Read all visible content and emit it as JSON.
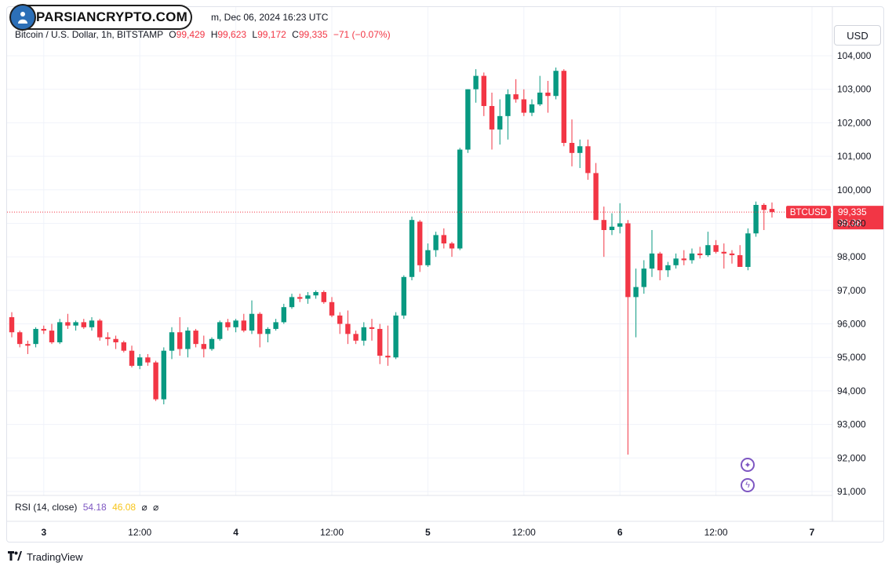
{
  "header": {
    "source_line_visible": "m, Dec 06, 2024 16:23 UTC",
    "symbol_line": "Bitcoin / U.S. Dollar, 1h, BITSTAMP",
    "ohlc": {
      "o_label": "O",
      "o_value": "99,429",
      "h_label": "H",
      "h_value": "99,623",
      "l_label": "L",
      "l_value": "99,172",
      "c_label": "C",
      "c_value": "99,335",
      "change": "−71 (−0.07%)"
    }
  },
  "logo": {
    "text": "PARSIANCRYPTO.COM",
    "icon": "parsiancrypto-logo-icon"
  },
  "currency_button": {
    "label": "USD"
  },
  "price_tag": {
    "symbol": "BTCUSD",
    "price": "99,335",
    "countdown": "36:38"
  },
  "rsi": {
    "label": "RSI (14, close)",
    "value1": "54.18",
    "value2": "46.08",
    "glyph1": "⌀",
    "glyph2": "⌀"
  },
  "branding": {
    "label": "TradingView",
    "icon": "tradingview-logo-icon"
  },
  "floating_buttons": [
    {
      "icon": "sparkle-icon"
    },
    {
      "icon": "lightning-icon"
    }
  ],
  "colors": {
    "up": "#089981",
    "down": "#f23645",
    "rsi_value1": "#7e57c2",
    "rsi_value2": "#f7c51b",
    "price_line": "#f23645",
    "grid": "#f0f3fa"
  },
  "chart_data": {
    "type": "candlestick",
    "symbol": "BTCUSD",
    "interval": "1h",
    "ylim": [
      91000,
      104300
    ],
    "y_ticks": [
      "91,000",
      "92,000",
      "93,000",
      "94,000",
      "95,000",
      "96,000",
      "97,000",
      "98,000",
      "99,000",
      "100,000",
      "101,000",
      "102,000",
      "103,000",
      "104,000"
    ],
    "y_tick_values": [
      91000,
      92000,
      93000,
      94000,
      95000,
      96000,
      97000,
      98000,
      99000,
      100000,
      101000,
      102000,
      103000,
      104000
    ],
    "x_ticks": [
      {
        "label": "3",
        "index": 4
      },
      {
        "label": "12:00",
        "index": 16
      },
      {
        "label": "4",
        "index": 28
      },
      {
        "label": "12:00",
        "index": 40
      },
      {
        "label": "5",
        "index": 52
      },
      {
        "label": "12:00",
        "index": 64
      },
      {
        "label": "6",
        "index": 76
      },
      {
        "label": "12:00",
        "index": 88
      },
      {
        "label": "7",
        "index": 100
      }
    ],
    "last_price": 99335,
    "grid": true,
    "candles": [
      [
        96200,
        96350,
        95600,
        95750
      ],
      [
        95750,
        95800,
        95300,
        95400
      ],
      [
        95400,
        95500,
        95100,
        95350
      ],
      [
        95400,
        95900,
        95300,
        95850
      ],
      [
        95850,
        95950,
        95700,
        95800
      ],
      [
        95800,
        96000,
        95400,
        95450
      ],
      [
        95450,
        96150,
        95400,
        96050
      ],
      [
        96050,
        96300,
        95850,
        95950
      ],
      [
        95950,
        96100,
        95800,
        96050
      ],
      [
        96050,
        96150,
        95850,
        95900
      ],
      [
        95900,
        96200,
        95800,
        96100
      ],
      [
        96100,
        96150,
        95500,
        95600
      ],
      [
        95600,
        95750,
        95350,
        95550
      ],
      [
        95550,
        95650,
        95250,
        95450
      ],
      [
        95450,
        95500,
        95150,
        95200
      ],
      [
        95200,
        95350,
        94700,
        94750
      ],
      [
        94750,
        95100,
        94650,
        95000
      ],
      [
        95000,
        95100,
        94750,
        94850
      ],
      [
        94850,
        94900,
        93700,
        93750
      ],
      [
        93750,
        95300,
        93600,
        95200
      ],
      [
        95200,
        95900,
        94950,
        95750
      ],
      [
        95750,
        96200,
        95050,
        95250
      ],
      [
        95250,
        95900,
        95000,
        95800
      ],
      [
        95800,
        95850,
        95300,
        95400
      ],
      [
        95400,
        95650,
        95000,
        95250
      ],
      [
        95250,
        95600,
        95200,
        95550
      ],
      [
        95550,
        96100,
        95500,
        96050
      ],
      [
        96050,
        96150,
        95800,
        95900
      ],
      [
        95900,
        96150,
        95750,
        96100
      ],
      [
        96100,
        96300,
        95750,
        95800
      ],
      [
        95800,
        96700,
        95700,
        96300
      ],
      [
        96300,
        96350,
        95300,
        95700
      ],
      [
        95700,
        95900,
        95450,
        95850
      ],
      [
        95850,
        96150,
        95800,
        96050
      ],
      [
        96050,
        96600,
        96000,
        96500
      ],
      [
        96500,
        96900,
        96450,
        96800
      ],
      [
        96800,
        96900,
        96650,
        96750
      ],
      [
        96750,
        96950,
        96600,
        96850
      ],
      [
        96850,
        97000,
        96750,
        96950
      ],
      [
        96950,
        97000,
        96600,
        96650
      ],
      [
        96650,
        96800,
        96200,
        96250
      ],
      [
        96250,
        96350,
        95700,
        96000
      ],
      [
        96000,
        96400,
        95400,
        95700
      ],
      [
        95700,
        95800,
        95400,
        95500
      ],
      [
        95500,
        96050,
        95350,
        95900
      ],
      [
        95900,
        96150,
        95500,
        95850
      ],
      [
        95850,
        96000,
        94800,
        95050
      ],
      [
        95050,
        95950,
        94750,
        95000
      ],
      [
        95000,
        96350,
        94950,
        96250
      ],
      [
        96250,
        97450,
        96150,
        97400
      ],
      [
        97400,
        99200,
        97300,
        99100
      ],
      [
        99050,
        99100,
        97550,
        97750
      ],
      [
        97750,
        98400,
        97700,
        98200
      ],
      [
        98200,
        98750,
        98000,
        98650
      ],
      [
        98650,
        98850,
        98250,
        98400
      ],
      [
        98400,
        98450,
        98000,
        98250
      ],
      [
        98250,
        101250,
        98200,
        101200
      ],
      [
        101200,
        103000,
        101100,
        103000
      ],
      [
        103000,
        103600,
        102600,
        103400
      ],
      [
        103400,
        103500,
        102200,
        102500
      ],
      [
        102500,
        102900,
        101200,
        101800
      ],
      [
        101800,
        102700,
        101350,
        102200
      ],
      [
        102200,
        103000,
        101500,
        102850
      ],
      [
        102850,
        103300,
        102600,
        102700
      ],
      [
        102700,
        103000,
        102200,
        102300
      ],
      [
        102300,
        102700,
        102200,
        102550
      ],
      [
        102550,
        103400,
        102500,
        102900
      ],
      [
        102900,
        103250,
        102300,
        102800
      ],
      [
        102800,
        103650,
        102700,
        103550
      ],
      [
        103550,
        103600,
        101300,
        101400
      ],
      [
        101400,
        102100,
        100700,
        101100
      ],
      [
        101100,
        101500,
        100650,
        101300
      ],
      [
        101300,
        101500,
        100300,
        100500
      ],
      [
        100500,
        100800,
        99100,
        99100
      ],
      [
        99100,
        99500,
        98000,
        98800
      ],
      [
        98800,
        99300,
        98650,
        98900
      ],
      [
        98900,
        99600,
        98700,
        99000
      ],
      [
        99000,
        99100,
        92100,
        96800
      ],
      [
        96800,
        97650,
        95600,
        97100
      ],
      [
        97100,
        97900,
        96900,
        97650
      ],
      [
        97650,
        98800,
        97400,
        98100
      ],
      [
        98100,
        98150,
        97300,
        97600
      ],
      [
        97600,
        97850,
        97400,
        97750
      ],
      [
        97750,
        98100,
        97650,
        97950
      ],
      [
        97950,
        98200,
        97750,
        97900
      ],
      [
        97900,
        98250,
        97800,
        98100
      ],
      [
        98100,
        98300,
        97950,
        98050
      ],
      [
        98050,
        98750,
        98000,
        98350
      ],
      [
        98350,
        98500,
        98100,
        98150
      ],
      [
        98150,
        98400,
        97650,
        98100
      ],
      [
        98100,
        98200,
        97800,
        98050
      ],
      [
        98050,
        98350,
        97750,
        97700
      ],
      [
        97700,
        98850,
        97600,
        98700
      ],
      [
        98700,
        99650,
        98600,
        99550
      ],
      [
        99550,
        99600,
        98800,
        99400
      ],
      [
        99429,
        99623,
        99172,
        99335
      ]
    ]
  }
}
